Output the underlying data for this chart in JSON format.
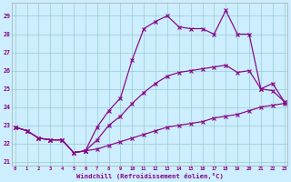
{
  "xlabel": "Windchill (Refroidissement éolien,°C)",
  "bg_color": "#cceeff",
  "line_color": "#880088",
  "grid_color": "#99cccc",
  "xlim_min": -0.3,
  "xlim_max": 23.3,
  "ylim_min": 20.8,
  "ylim_max": 29.7,
  "yticks": [
    21,
    22,
    23,
    24,
    25,
    26,
    27,
    28,
    29
  ],
  "xticks": [
    0,
    1,
    2,
    3,
    4,
    5,
    6,
    7,
    8,
    9,
    10,
    11,
    12,
    13,
    14,
    15,
    16,
    17,
    18,
    19,
    20,
    21,
    22,
    23
  ],
  "series_bottom": [
    22.9,
    22.7,
    22.3,
    22.2,
    22.2,
    21.5,
    21.6,
    21.7,
    21.9,
    22.1,
    22.3,
    22.5,
    22.7,
    22.9,
    23.0,
    23.1,
    23.2,
    23.4,
    23.5,
    23.6,
    23.8,
    24.0,
    24.1,
    24.2
  ],
  "series_mid": [
    22.9,
    22.7,
    22.3,
    22.2,
    22.2,
    21.5,
    21.6,
    22.2,
    23.0,
    23.5,
    24.2,
    24.8,
    25.3,
    25.7,
    25.9,
    26.0,
    26.1,
    26.2,
    26.3,
    25.9,
    26.0,
    25.0,
    24.9,
    24.3
  ],
  "series_top": [
    22.9,
    22.7,
    22.3,
    22.2,
    22.2,
    21.5,
    21.6,
    22.9,
    23.8,
    24.5,
    26.6,
    28.3,
    28.7,
    29.0,
    28.4,
    28.3,
    28.3,
    28.0,
    29.3,
    28.0,
    28.0,
    25.0,
    25.3,
    24.3
  ]
}
